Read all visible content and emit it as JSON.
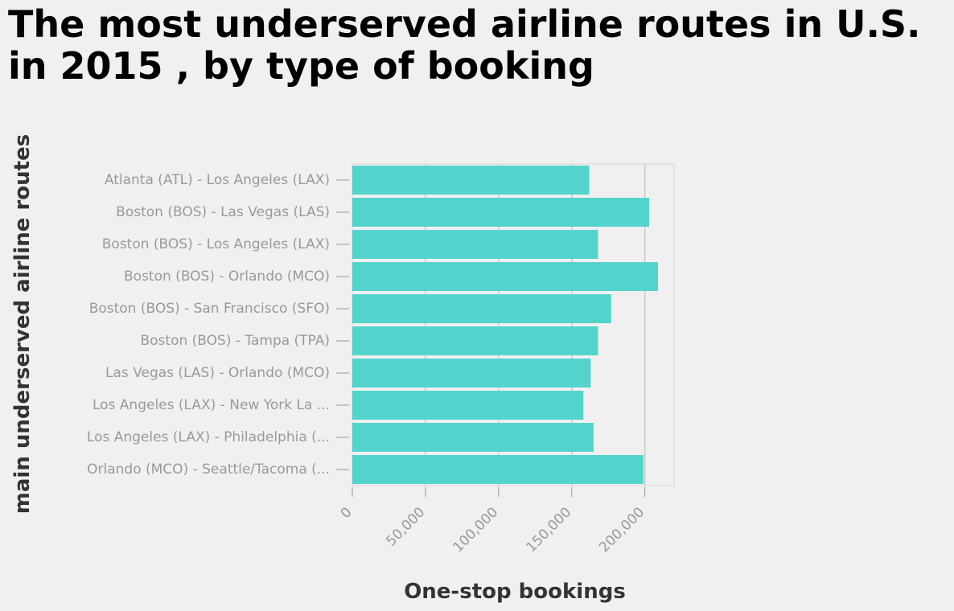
{
  "chart_data": {
    "type": "bar",
    "orientation": "horizontal",
    "title": "The most underserved airline routes in U.S. in 2015 , by type of booking",
    "xlabel": "One-stop bookings",
    "ylabel": "main underserved airline routes",
    "categories": [
      "Atlanta (ATL) - Los Angeles (LAX)",
      "Boston (BOS) - Las Vegas (LAS)",
      "Boston (BOS) - Los Angeles (LAX)",
      "Boston (BOS) - Orlando (MCO)",
      "Boston (BOS) - San Francisco (SFO)",
      "Boston (BOS) - Tampa (TPA)",
      "Las Vegas (LAS) - Orlando (MCO)",
      "Los Angeles (LAX) - New York La ...",
      "Los Angeles (LAX) - Philadelphia (...",
      "Orlando (MCO) - Seattle/Tacoma (..."
    ],
    "values": [
      162000,
      203000,
      168000,
      209000,
      177000,
      168000,
      163000,
      158000,
      165000,
      199000
    ],
    "xlim": [
      0,
      220000
    ],
    "xticks": [
      0,
      50000,
      100000,
      150000,
      200000
    ],
    "xtick_labels": [
      "0",
      "50,000",
      "100,000",
      "150,000",
      "200,000"
    ],
    "grid": "vertical",
    "bar_color": "#54d3cc"
  }
}
